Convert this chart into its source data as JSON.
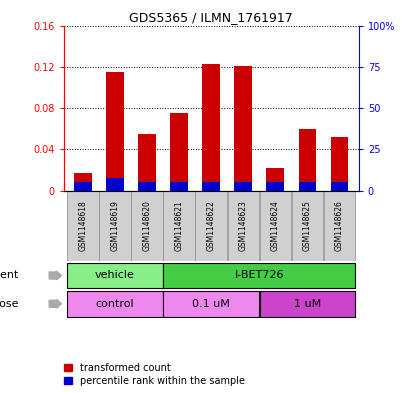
{
  "title": "GDS5365 / ILMN_1761917",
  "samples": [
    "GSM1148618",
    "GSM1148619",
    "GSM1148620",
    "GSM1148621",
    "GSM1148622",
    "GSM1148623",
    "GSM1148624",
    "GSM1148625",
    "GSM1148626"
  ],
  "transformed_counts": [
    0.017,
    0.115,
    0.055,
    0.075,
    0.123,
    0.121,
    0.022,
    0.06,
    0.052
  ],
  "percentile_ranks": [
    0.008,
    0.012,
    0.008,
    0.008,
    0.008,
    0.008,
    0.008,
    0.008,
    0.008
  ],
  "ylim_left": [
    0,
    0.16
  ],
  "ylim_right": [
    0,
    100
  ],
  "yticks_left": [
    0,
    0.04,
    0.08,
    0.12,
    0.16
  ],
  "yticks_right": [
    0,
    25,
    50,
    75,
    100
  ],
  "ytick_labels_left": [
    "0",
    "0.04",
    "0.08",
    "0.12",
    "0.16"
  ],
  "ytick_labels_right": [
    "0",
    "25",
    "50",
    "75",
    "100%"
  ],
  "bar_color_red": "#cc0000",
  "bar_color_blue": "#0000cc",
  "agent_labels": [
    "vehicle",
    "I-BET726"
  ],
  "agent_color_light": "#88ee88",
  "agent_color_bright": "#44cc44",
  "dose_labels": [
    "control",
    "0.1 uM",
    "1 uM"
  ],
  "dose_color_light": "#ee88ee",
  "dose_color_bright": "#cc44cc",
  "legend_red_label": "transformed count",
  "legend_blue_label": "percentile rank within the sample",
  "bar_width": 0.55
}
